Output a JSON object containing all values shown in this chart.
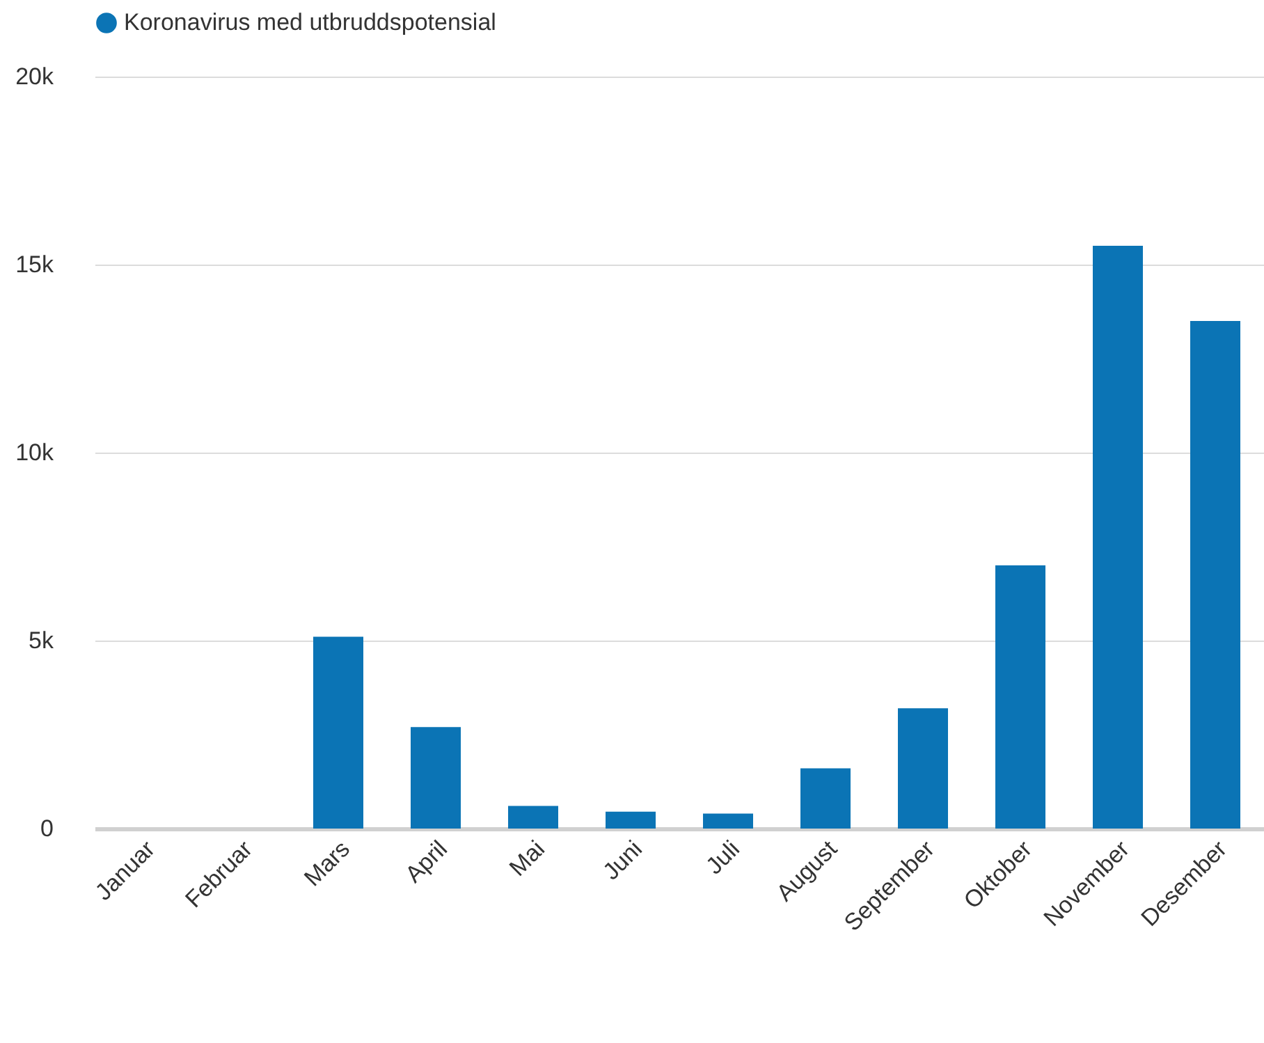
{
  "chart_data": {
    "type": "bar",
    "categories": [
      "Januar",
      "Februar",
      "Mars",
      "April",
      "Mai",
      "Juni",
      "Juli",
      "August",
      "September",
      "Oktober",
      "November",
      "Desember"
    ],
    "series": [
      {
        "name": "Koronavirus med utbruddspotensial",
        "color": "#0b74b5",
        "values": [
          0,
          0,
          5100,
          2700,
          600,
          450,
          400,
          1600,
          3200,
          7000,
          15500,
          13500
        ]
      }
    ],
    "ylim": [
      0,
      20000
    ],
    "yticks": [
      0,
      {
        "value": 5000,
        "label": "5k"
      },
      {
        "value": 10000,
        "label": "10k"
      },
      {
        "value": 15000,
        "label": "15k"
      },
      {
        "value": 20000,
        "label": "20k"
      }
    ],
    "grid": "y",
    "legend": "top left"
  }
}
